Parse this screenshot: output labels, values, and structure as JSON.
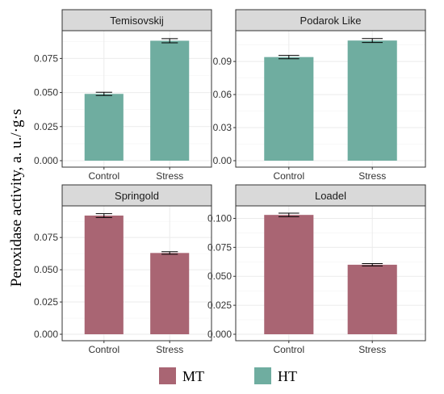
{
  "chart_data": {
    "type": "bar",
    "ylabel": "Peroxidase activity, a. u./·g·s",
    "categories": [
      "Control",
      "Stress"
    ],
    "legend": [
      {
        "name": "MT",
        "color": "#a96573"
      },
      {
        "name": "HT",
        "color": "#6fada0"
      }
    ],
    "grid": true,
    "panels": [
      {
        "title": "Temisovskij",
        "group": "HT",
        "values": [
          0.049,
          0.088
        ],
        "errors": [
          0.0012,
          0.0015
        ],
        "ylim": [
          0,
          0.093
        ],
        "yticks": [
          "0.000",
          "0.025",
          "0.050",
          "0.075"
        ]
      },
      {
        "title": "Podarok Like",
        "group": "HT",
        "values": [
          0.094,
          0.109
        ],
        "errors": [
          0.0015,
          0.0018
        ],
        "ylim": [
          0,
          0.115
        ],
        "yticks": [
          "0.00",
          "0.03",
          "0.06",
          "0.09"
        ]
      },
      {
        "title": "Springold",
        "group": "MT",
        "values": [
          0.092,
          0.063
        ],
        "errors": [
          0.0015,
          0.001
        ],
        "ylim": [
          0,
          0.097
        ],
        "yticks": [
          "0.000",
          "0.025",
          "0.050",
          "0.075"
        ]
      },
      {
        "title": "Loadel",
        "group": "MT",
        "values": [
          0.103,
          0.06
        ],
        "errors": [
          0.0015,
          0.001
        ],
        "ylim": [
          0,
          0.108
        ],
        "yticks": [
          "0.000",
          "0.025",
          "0.050",
          "0.075",
          "0.100"
        ]
      }
    ]
  }
}
